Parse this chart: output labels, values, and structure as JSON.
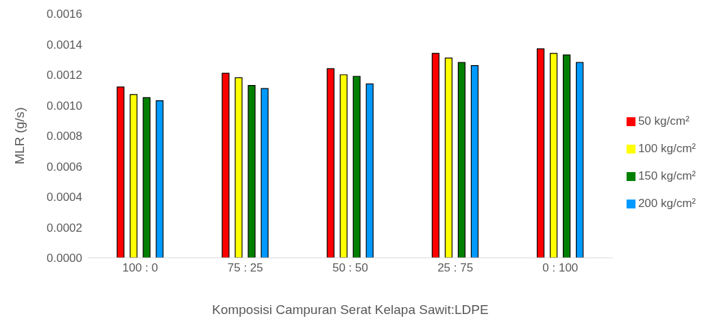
{
  "chart_data": {
    "type": "bar",
    "xlabel": "Komposisi Campuran Serat Kelapa Sawit:LDPE",
    "ylabel": "MLR (g/s)",
    "categories": [
      "100 : 0",
      "75 : 25",
      "50 : 50",
      "25 : 75",
      "0 : 100"
    ],
    "series": [
      {
        "name": "50 kg/cm²",
        "color": "#ff0000",
        "values": [
          0.00112,
          0.00121,
          0.00124,
          0.00134,
          0.00137
        ]
      },
      {
        "name": "100 kg/cm²",
        "color": "#ffff00",
        "values": [
          0.00107,
          0.00118,
          0.0012,
          0.00131,
          0.00134
        ]
      },
      {
        "name": "150 kg/cm²",
        "color": "#008000",
        "values": [
          0.00105,
          0.00113,
          0.00119,
          0.00128,
          0.00133
        ]
      },
      {
        "name": "200 kg/cm²",
        "color": "#0099ff",
        "values": [
          0.00103,
          0.00111,
          0.00114,
          0.00126,
          0.00128
        ]
      }
    ],
    "ylim": [
      0,
      0.0016
    ],
    "yticks": [
      {
        "value": 0,
        "label": "0.0000"
      },
      {
        "value": 0.0002,
        "label": "0.0002"
      },
      {
        "value": 0.0004,
        "label": "0.0004"
      },
      {
        "value": 0.0006,
        "label": "0.0006"
      },
      {
        "value": 0.0008,
        "label": "0.0008"
      },
      {
        "value": 0.001,
        "label": "0.0010"
      },
      {
        "value": 0.0012,
        "label": "0.0012"
      },
      {
        "value": 0.0014,
        "label": "0.0014"
      },
      {
        "value": 0.0016,
        "label": "0.0016"
      }
    ],
    "grid": false,
    "legend": "right"
  }
}
